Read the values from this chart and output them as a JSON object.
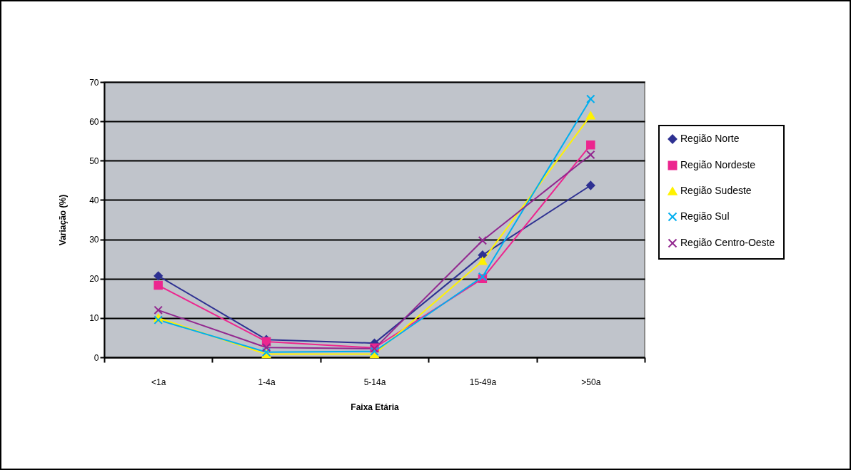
{
  "chart_data": {
    "type": "line",
    "xlabel": "Faixa Etária",
    "ylabel": "Variação (%)",
    "categories": [
      "<1a",
      "1-4a",
      "5-14a",
      "15-49a",
      ">50a"
    ],
    "ylim": [
      0,
      70
    ],
    "yticks": [
      0,
      10,
      20,
      30,
      40,
      50,
      60,
      70
    ],
    "grid": "y",
    "legend": "right",
    "series": [
      {
        "name": "Região Norte",
        "color": "#2e3192",
        "marker": "diamond",
        "values": [
          20.7,
          4.5,
          3.6,
          26,
          43.7
        ]
      },
      {
        "name": "Região Nordeste",
        "color": "#ec268f",
        "marker": "square",
        "values": [
          18.3,
          4,
          2.4,
          20,
          54
        ]
      },
      {
        "name": "Região Sudeste",
        "color": "#fff200",
        "marker": "triangle",
        "values": [
          10,
          0.8,
          0.8,
          24.5,
          61.5
        ]
      },
      {
        "name": "Região Sul",
        "color": "#00aeef",
        "marker": "cross",
        "values": [
          9.5,
          1.3,
          1.5,
          20.5,
          65.7
        ]
      },
      {
        "name": "Região Centro-Oeste",
        "color": "#92278f",
        "marker": "cross",
        "values": [
          12,
          2.5,
          2.2,
          29.7,
          51.5
        ]
      }
    ]
  }
}
